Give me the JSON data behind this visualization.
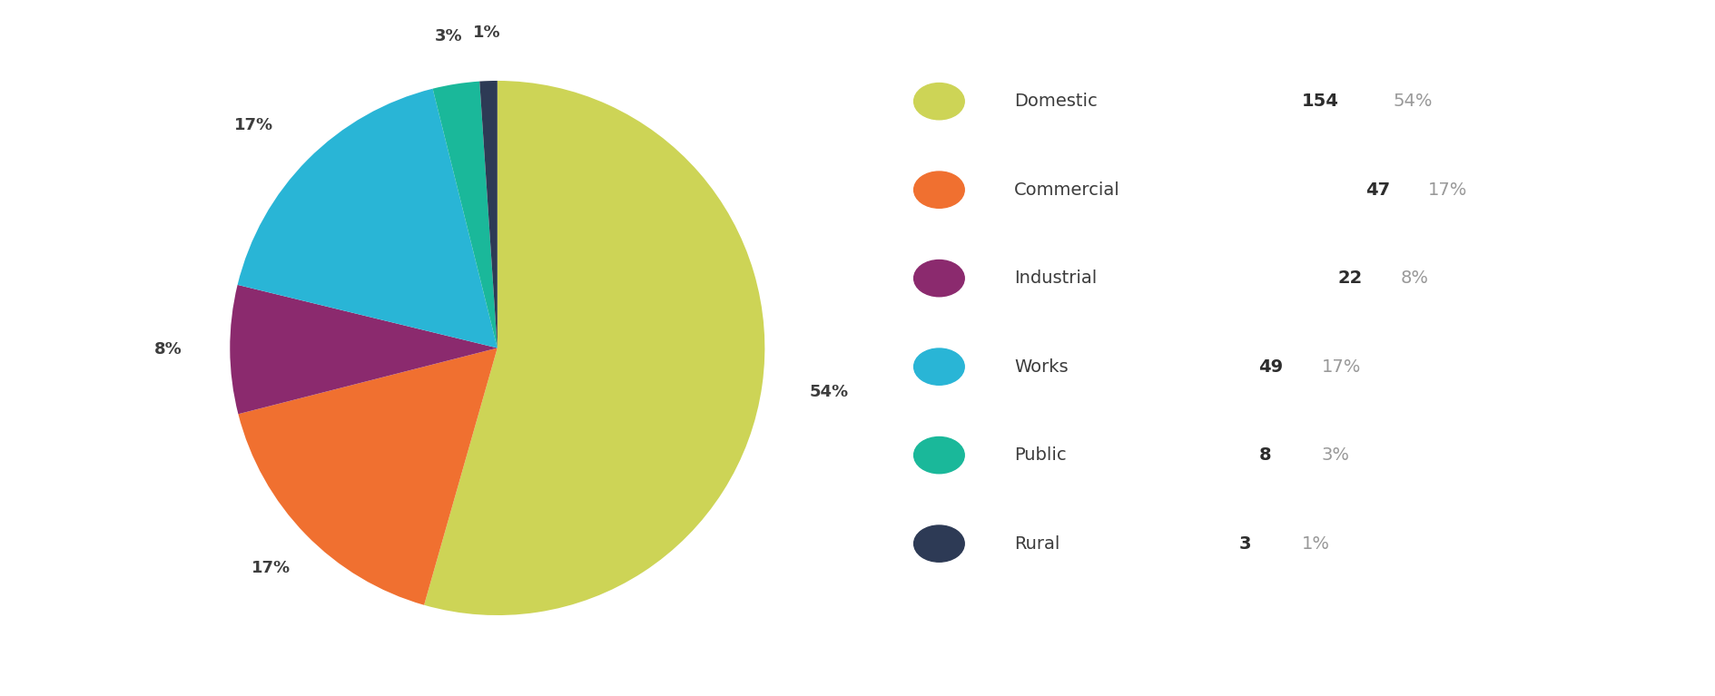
{
  "labels": [
    "Domestic",
    "Commercial",
    "Industrial",
    "Works",
    "Public",
    "Rural"
  ],
  "values": [
    154,
    47,
    22,
    49,
    8,
    3
  ],
  "percentages": [
    54,
    17,
    8,
    17,
    3,
    1
  ],
  "colors": [
    "#cdd456",
    "#f07030",
    "#8b2a6e",
    "#29b5d6",
    "#1ab89a",
    "#2d3a55"
  ],
  "legend_counts": [
    154,
    47,
    22,
    49,
    8,
    3
  ],
  "legend_pcts": [
    "54%",
    "17%",
    "8%",
    "17%",
    "3%",
    "1%"
  ],
  "background_color": "#ffffff",
  "text_color": "#3d3d3d",
  "bold_color": "#2d2d2d",
  "pct_color": "#999999"
}
